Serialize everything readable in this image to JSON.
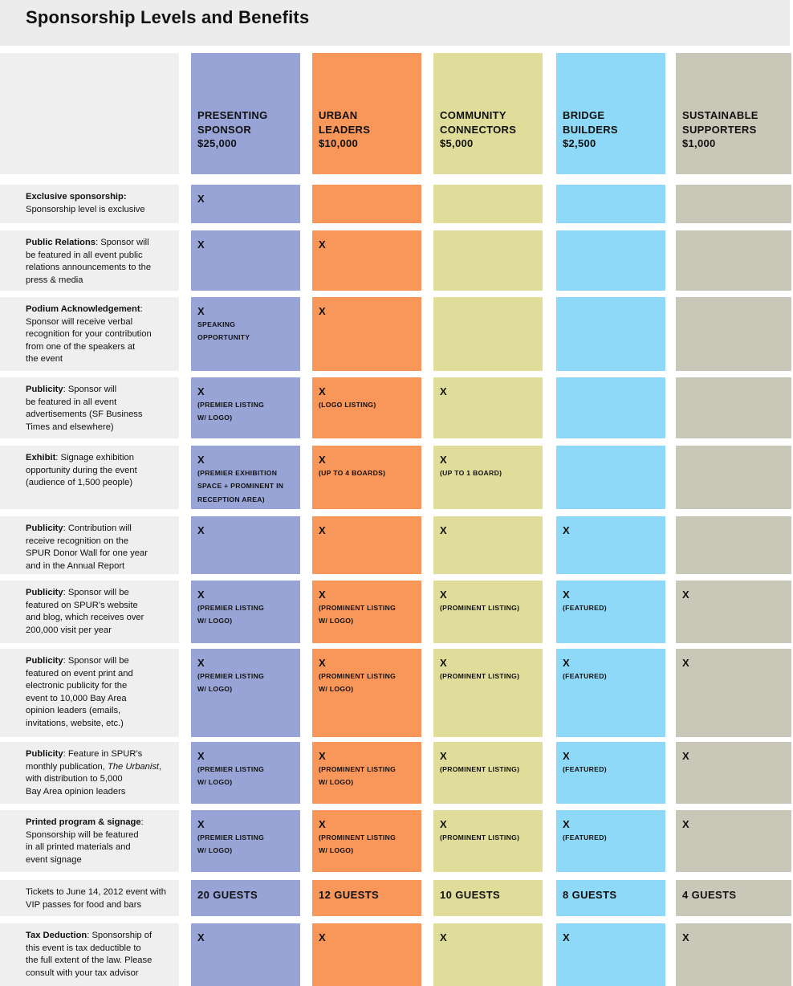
{
  "title": "Sponsorship Levels and Benefits",
  "levels": [
    {
      "line1": "PRESENTING",
      "line2": "SPONSOR",
      "price": "$25,000",
      "color": "#98a4d5"
    },
    {
      "line1": "URBAN",
      "line2": "LEADERS",
      "price": "$10,000",
      "color": "#f99659"
    },
    {
      "line1": "COMMUNITY",
      "line2": "CONNECTORS",
      "price": "$5,000",
      "color": "#dfdd99"
    },
    {
      "line1": "BRIDGE",
      "line2": "BUILDERS",
      "price": "$2,500",
      "color": "#8ed8f8"
    },
    {
      "line1": "SUSTAINABLE",
      "line2": "SUPPORTERS",
      "price": "$1,000",
      "color": "#c9c8b8"
    }
  ],
  "rows": [
    {
      "label_bold": "Exclusive sponsorship:",
      "label_lines": [
        "Sponsorship level is exclusive"
      ],
      "cells": [
        {
          "mark": "X"
        },
        {},
        {},
        {},
        {}
      ]
    },
    {
      "label_bold": "Public Relations",
      "label_first_rest": ": Sponsor will",
      "label_lines": [
        "be featured in all event public",
        "relations announcements to the",
        "press & media"
      ],
      "cells": [
        {
          "mark": "X"
        },
        {
          "mark": "X"
        },
        {},
        {},
        {}
      ]
    },
    {
      "label_bold": "Podium Acknowledgement",
      "label_first_rest": ":",
      "label_lines": [
        "Sponsor will receive verbal",
        "recognition for your contribution",
        "from one of the speakers at",
        "the event"
      ],
      "cells": [
        {
          "mark": "X",
          "note": [
            "SPEAKING",
            "OPPORTUNITY"
          ]
        },
        {
          "mark": "X"
        },
        {},
        {},
        {}
      ]
    },
    {
      "label_bold": "Publicity",
      "label_first_rest": ": Sponsor will",
      "label_lines": [
        "be featured in all event",
        "advertisements (SF Business",
        "Times and elsewhere)"
      ],
      "cells": [
        {
          "mark": "X",
          "note": [
            "(PREMIER LISTING",
            "W/ LOGO)"
          ]
        },
        {
          "mark": "X",
          "note": [
            "(LOGO LISTING)"
          ]
        },
        {
          "mark": "X"
        },
        {},
        {}
      ]
    },
    {
      "label_bold": "Exhibit",
      "label_first_rest": ": Signage exhibition",
      "label_lines": [
        "opportunity during the event",
        "(audience of 1,500 people)"
      ],
      "cells": [
        {
          "mark": "X",
          "note": [
            "(PREMIER EXHIBITION",
            "SPACE + PROMINENT IN",
            "RECEPTION AREA)"
          ]
        },
        {
          "mark": "X",
          "note": [
            "(UP TO 4 BOARDS)"
          ]
        },
        {
          "mark": "X",
          "note": [
            "(UP TO 1 BOARD)"
          ]
        },
        {},
        {}
      ]
    },
    {
      "label_bold": "Publicity",
      "label_first_rest": ": Contribution will",
      "label_lines": [
        "receive recognition on the",
        "SPUR Donor Wall for one year",
        "and in the Annual Report"
      ],
      "cells": [
        {
          "mark": "X"
        },
        {
          "mark": "X"
        },
        {
          "mark": "X"
        },
        {
          "mark": "X"
        },
        {}
      ]
    },
    {
      "label_bold": "Publicity",
      "label_first_rest": ": Sponsor will be",
      "label_lines": [
        "featured on SPUR’s website",
        "and blog, which receives over",
        "200,000 visit per year"
      ],
      "cells": [
        {
          "mark": "X",
          "note": [
            "(PREMIER LISTING",
            "W/ LOGO)"
          ]
        },
        {
          "mark": "X",
          "note": [
            "(PROMINENT LISTING",
            "W/ LOGO)"
          ]
        },
        {
          "mark": "X",
          "note": [
            "(PROMINENT LISTING)"
          ]
        },
        {
          "mark": "X",
          "note": [
            "(FEATURED)"
          ]
        },
        {
          "mark": "X"
        }
      ]
    },
    {
      "label_bold": "Publicity",
      "label_first_rest": ": Sponsor will be",
      "label_lines": [
        "featured on event print and",
        "electronic publicity for the",
        "event to 10,000 Bay Area",
        "opinion leaders (emails,",
        "invitations, website, etc.)"
      ],
      "cells": [
        {
          "mark": "X",
          "note": [
            "(PREMIER LISTING",
            "W/ LOGO)"
          ]
        },
        {
          "mark": "X",
          "note": [
            "(PROMINENT LISTING",
            "W/ LOGO)"
          ]
        },
        {
          "mark": "X",
          "note": [
            "(PROMINENT LISTING)"
          ]
        },
        {
          "mark": "X",
          "note": [
            "(FEATURED)"
          ]
        },
        {
          "mark": "X"
        }
      ]
    },
    {
      "label_bold": "Publicity",
      "label_first_rest": ": Feature in SPUR’s",
      "label_lines_pre": "monthly publication, ",
      "label_italic": "The Urbanist",
      "label_lines_post": ",",
      "label_lines": [
        "with distribution to 5,000",
        "Bay Area opinion leaders"
      ],
      "cells": [
        {
          "mark": "X",
          "note": [
            "(PREMIER LISTING",
            "W/ LOGO)"
          ]
        },
        {
          "mark": "X",
          "note": [
            "(PROMINENT LISTING",
            "W/ LOGO)"
          ]
        },
        {
          "mark": "X",
          "note": [
            "(PROMINENT LISTING)"
          ]
        },
        {
          "mark": "X",
          "note": [
            "(FEATURED)"
          ]
        },
        {
          "mark": "X"
        }
      ]
    },
    {
      "label_bold": "Printed program & signage",
      "label_first_rest": ":",
      "label_lines": [
        "Sponsorship will be featured",
        "in all printed materials and",
        "event signage"
      ],
      "cells": [
        {
          "mark": "X",
          "note": [
            "(PREMIER LISTING",
            "W/ LOGO)"
          ]
        },
        {
          "mark": "X",
          "note": [
            "(PROMINENT LISTING",
            "W/ LOGO)"
          ]
        },
        {
          "mark": "X",
          "note": [
            "(PROMINENT LISTING)"
          ]
        },
        {
          "mark": "X",
          "note": [
            "(FEATURED)"
          ]
        },
        {
          "mark": "X"
        }
      ]
    },
    {
      "label_plain_lines": [
        "Tickets to June 14, 2012 event with",
        "VIP passes for food and bars"
      ],
      "cells": [
        {
          "guests": "20 GUESTS"
        },
        {
          "guests": "12 GUESTS"
        },
        {
          "guests": "10 GUESTS"
        },
        {
          "guests": "8 GUESTS"
        },
        {
          "guests": "4 GUESTS"
        }
      ]
    },
    {
      "label_bold": "Tax Deduction",
      "label_first_rest": ": Sponsorship of",
      "label_lines": [
        "this event is tax deductible to",
        "the full extent of the law. Please",
        "consult with your tax advisor"
      ],
      "cells": [
        {
          "mark": "X"
        },
        {
          "mark": "X"
        },
        {
          "mark": "X"
        },
        {
          "mark": "X"
        },
        {
          "mark": "X"
        }
      ]
    }
  ]
}
